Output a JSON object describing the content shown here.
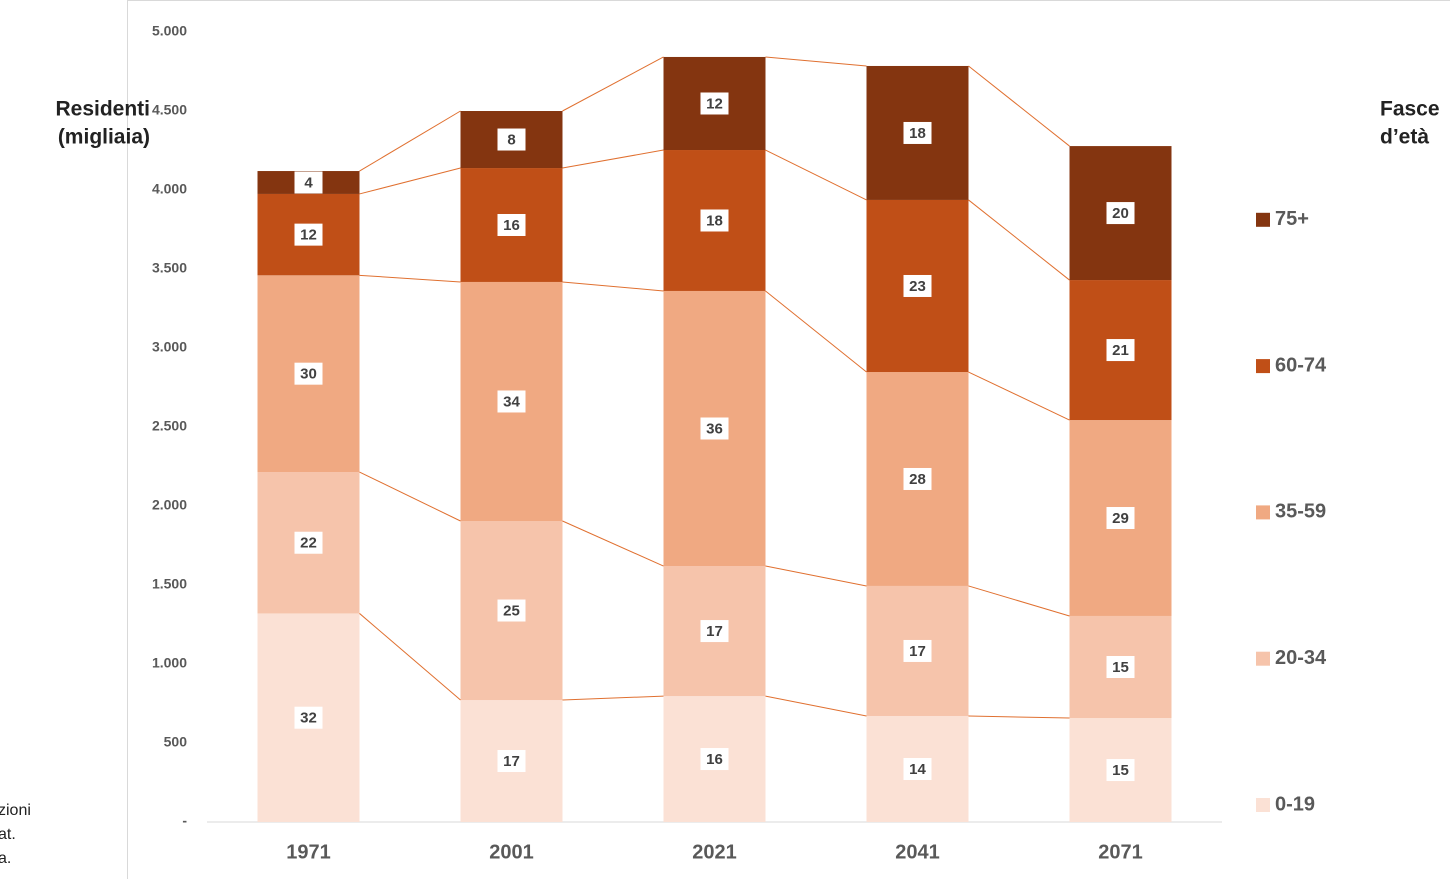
{
  "chart_data": {
    "type": "stacked_bar",
    "ylabel": [
      "Residenti",
      "(migliaia)"
    ],
    "legend_title": [
      "Fasce",
      "d’età"
    ],
    "notes": [
      "zioni",
      "at.",
      "a."
    ],
    "categories": [
      "1971",
      "2001",
      "2021",
      "2041",
      "2071"
    ],
    "series": [
      {
        "name": "0-19",
        "color": "#fbe1d5",
        "values": [
          1320,
          772,
          797,
          671,
          658
        ],
        "shares": [
          32,
          17,
          16,
          14,
          15
        ]
      },
      {
        "name": "20-34",
        "color": "#f6c4ab",
        "values": [
          895,
          1133,
          823,
          823,
          646
        ],
        "shares": [
          22,
          25,
          17,
          17,
          15
        ]
      },
      {
        "name": "35-59",
        "color": "#f0a982",
        "values": [
          1245,
          1513,
          1741,
          1354,
          1240
        ],
        "shares": [
          30,
          34,
          36,
          28,
          29
        ]
      },
      {
        "name": "60-74",
        "color": "#c04f17",
        "values": [
          515,
          721,
          892,
          1089,
          886
        ],
        "shares": [
          12,
          16,
          18,
          23,
          21
        ]
      },
      {
        "name": "75+",
        "color": "#843510",
        "values": [
          145,
          361,
          589,
          848,
          848
        ],
        "shares": [
          4,
          8,
          12,
          18,
          20
        ]
      }
    ],
    "ylim": [
      0,
      5000
    ],
    "yticks": [
      {
        "value": 0,
        "label": "-"
      },
      500,
      {
        "value": 1000,
        "label": "1.000"
      },
      {
        "value": 1500,
        "label": "1.500"
      },
      {
        "value": 2000,
        "label": "2.000"
      },
      {
        "value": 2500,
        "label": "2.500"
      },
      {
        "value": 3000,
        "label": "3.000"
      },
      {
        "value": 3500,
        "label": "3.500"
      },
      {
        "value": 4000,
        "label": "4.000"
      },
      {
        "value": 4500,
        "label": "4.500"
      },
      {
        "value": 5000,
        "label": "5.000"
      }
    ],
    "connector_color": "#e07030",
    "legend": "right"
  }
}
